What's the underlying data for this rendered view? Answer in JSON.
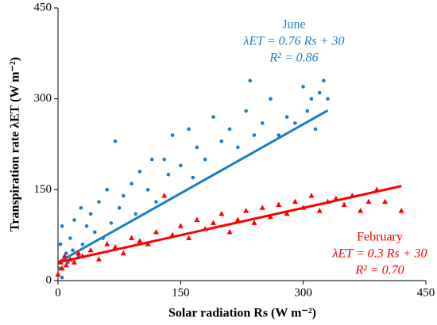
{
  "chart_data": {
    "type": "scatter",
    "xlabel": "Solar radiation Rs (W m⁻²)",
    "ylabel": "Transpiration rate λET (W m⁻²)",
    "xlim": [
      0,
      450
    ],
    "xticks": [
      0,
      150,
      300,
      450
    ],
    "ylim": [
      0,
      450
    ],
    "yticks": [
      0,
      150,
      300,
      450
    ],
    "series": [
      {
        "name": "June",
        "color": "#1b7dc4",
        "marker": "circle",
        "x": [
          2,
          3,
          5,
          5,
          8,
          10,
          12,
          15,
          18,
          20,
          25,
          28,
          30,
          35,
          40,
          45,
          50,
          55,
          60,
          65,
          70,
          75,
          80,
          90,
          95,
          100,
          110,
          115,
          120,
          130,
          135,
          140,
          150,
          160,
          165,
          170,
          180,
          190,
          200,
          210,
          220,
          230,
          235,
          240,
          250,
          260,
          270,
          280,
          290,
          300,
          305,
          310,
          315,
          320,
          325,
          330
        ],
        "values": [
          20,
          60,
          5,
          90,
          35,
          45,
          30,
          70,
          50,
          100,
          40,
          120,
          60,
          90,
          110,
          80,
          130,
          70,
          150,
          95,
          230,
          120,
          140,
          160,
          110,
          180,
          150,
          200,
          130,
          200,
          175,
          240,
          190,
          250,
          170,
          220,
          200,
          270,
          230,
          250,
          220,
          280,
          330,
          240,
          260,
          300,
          240,
          270,
          260,
          320,
          280,
          300,
          250,
          310,
          330,
          300
        ],
        "fit": {
          "x": [
            0,
            330
          ],
          "values": [
            30,
            280.8
          ]
        },
        "annotation": [
          "λET = 0.76 Rs + 30",
          "R² = 0.86"
        ]
      },
      {
        "name": "February",
        "color": "#ff0000",
        "marker": "triangle",
        "x": [
          0,
          3,
          5,
          8,
          10,
          15,
          20,
          25,
          30,
          40,
          50,
          60,
          70,
          80,
          90,
          100,
          110,
          120,
          130,
          140,
          150,
          160,
          170,
          180,
          190,
          200,
          210,
          220,
          230,
          240,
          250,
          260,
          270,
          280,
          290,
          300,
          310,
          320,
          330,
          340,
          350,
          360,
          370,
          380,
          390,
          400,
          420
        ],
        "values": [
          10,
          30,
          20,
          40,
          25,
          35,
          30,
          45,
          40,
          50,
          35,
          60,
          55,
          45,
          70,
          65,
          60,
          80,
          140,
          75,
          90,
          70,
          100,
          85,
          95,
          110,
          80,
          100,
          115,
          95,
          120,
          105,
          125,
          110,
          130,
          120,
          140,
          115,
          130,
          135,
          125,
          140,
          115,
          130,
          150,
          130,
          115
        ],
        "fit": {
          "x": [
            0,
            420
          ],
          "values": [
            30,
            156
          ]
        },
        "annotation": [
          "λET = 0.3 Rs + 30",
          "R² = 0.70"
        ]
      }
    ]
  }
}
